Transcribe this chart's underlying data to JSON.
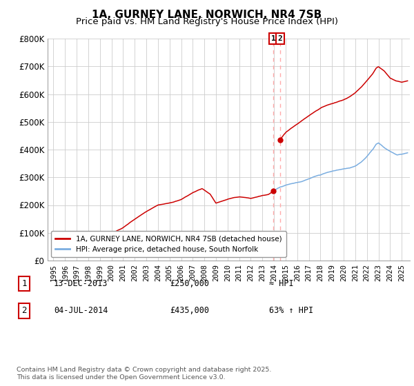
{
  "title": "1A, GURNEY LANE, NORWICH, NR4 7SB",
  "subtitle": "Price paid vs. HM Land Registry's House Price Index (HPI)",
  "ylim": [
    0,
    800000
  ],
  "yticks": [
    0,
    100000,
    200000,
    300000,
    400000,
    500000,
    600000,
    700000,
    800000
  ],
  "ytick_labels": [
    "£0",
    "£100K",
    "£200K",
    "£300K",
    "£400K",
    "£500K",
    "£600K",
    "£700K",
    "£800K"
  ],
  "line1_color": "#cc0000",
  "line2_color": "#7aade0",
  "vline_color": "#ffaaaa",
  "sale1_x": 2013.96,
  "sale1_y": 250000,
  "sale2_x": 2014.54,
  "sale2_y": 435000,
  "legend1_label": "1A, GURNEY LANE, NORWICH, NR4 7SB (detached house)",
  "legend2_label": "HPI: Average price, detached house, South Norfolk",
  "table_row1": [
    "1",
    "13-DEC-2013",
    "£250,000",
    "≈ HPI"
  ],
  "table_row2": [
    "2",
    "04-JUL-2014",
    "£435,000",
    "63% ↑ HPI"
  ],
  "footnote": "Contains HM Land Registry data © Crown copyright and database right 2025.\nThis data is licensed under the Open Government Licence v3.0.",
  "background_color": "#ffffff",
  "grid_color": "#cccccc",
  "xlim": [
    1994.5,
    2025.7
  ],
  "xlim_start_year": 1995,
  "xlim_end_year": 2025
}
